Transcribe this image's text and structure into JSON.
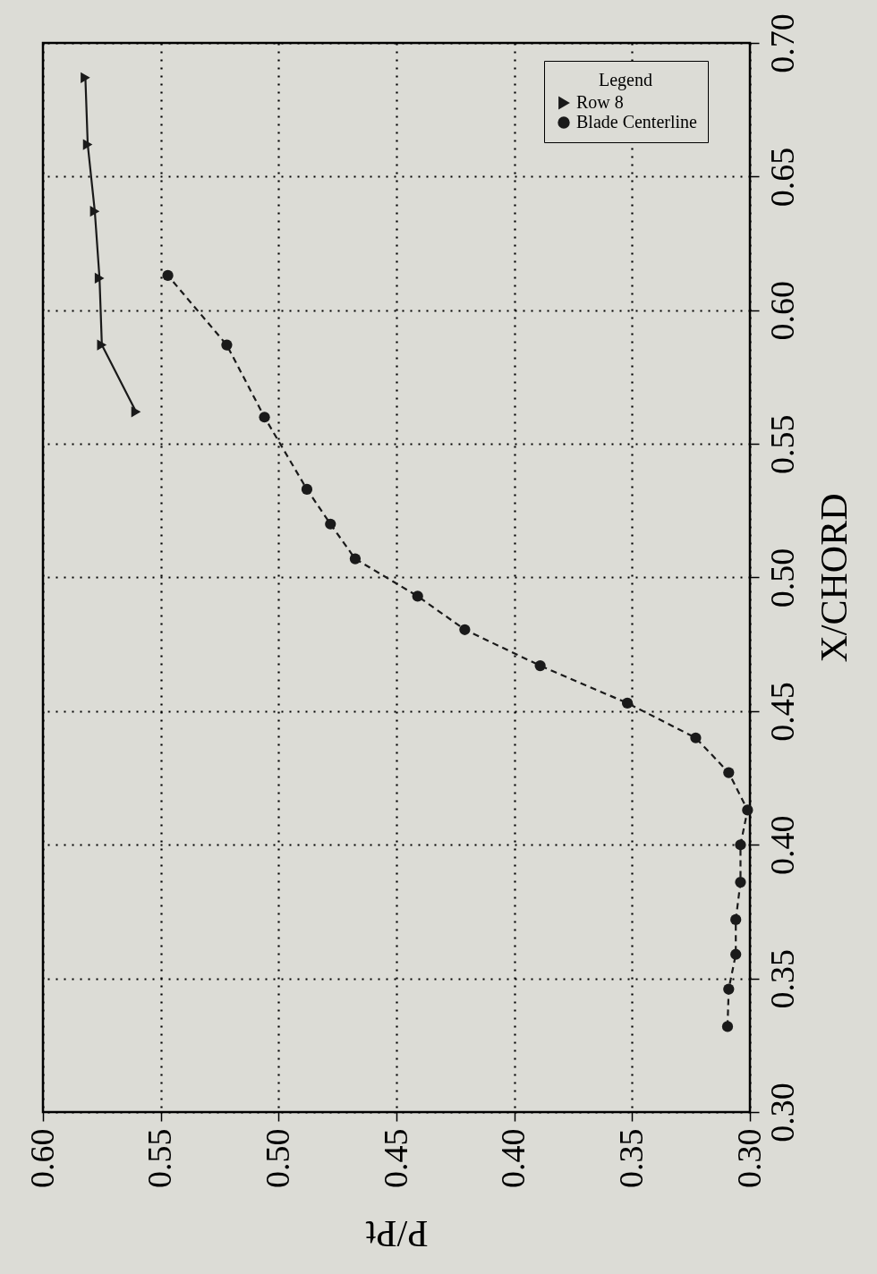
{
  "chart_data": {
    "type": "line",
    "xlabel": "P/Pt",
    "ylabel": "X/CHORD",
    "legend_title": "Legend",
    "legend": "top right",
    "grid": true,
    "xlim": [
      0.6,
      0.3
    ],
    "ylim": [
      0.3,
      0.7
    ],
    "xticks": [
      {
        "value": 0.6,
        "label": "0.60"
      },
      {
        "value": 0.55,
        "label": "0.55"
      },
      {
        "value": 0.5,
        "label": "0.50"
      },
      {
        "value": 0.45,
        "label": "0.45"
      },
      {
        "value": 0.4,
        "label": "0.40"
      },
      {
        "value": 0.35,
        "label": "0.35"
      },
      {
        "value": 0.3,
        "label": "0.30"
      }
    ],
    "yticks": [
      {
        "value": 0.3,
        "label": "0.30"
      },
      {
        "value": 0.35,
        "label": "0.35"
      },
      {
        "value": 0.4,
        "label": "0.40"
      },
      {
        "value": 0.45,
        "label": "0.45"
      },
      {
        "value": 0.5,
        "label": "0.50"
      },
      {
        "value": 0.55,
        "label": "0.55"
      },
      {
        "value": 0.6,
        "label": "0.60"
      },
      {
        "value": 0.65,
        "label": "0.65"
      },
      {
        "value": 0.7,
        "label": "0.70"
      }
    ],
    "series": [
      {
        "name": "Row 8",
        "color": "#1a1a1a",
        "marker": "triangle",
        "line_style": "solid",
        "x": [
          0.5605,
          0.575,
          0.576,
          0.578,
          0.581,
          0.582
        ],
        "values": [
          0.562,
          0.587,
          0.612,
          0.637,
          0.662,
          0.687
        ]
      },
      {
        "name": "Blade Centerline",
        "color": "#1a1a1a",
        "marker": "circle",
        "line_style": "dashed",
        "x": [
          0.3095,
          0.309,
          0.306,
          0.306,
          0.304,
          0.304,
          0.301,
          0.309,
          0.323,
          0.352,
          0.389,
          0.421,
          0.441,
          0.4675,
          0.478,
          0.488,
          0.506,
          0.522,
          0.547
        ],
        "values": [
          0.332,
          0.346,
          0.359,
          0.372,
          0.386,
          0.4,
          0.413,
          0.427,
          0.44,
          0.453,
          0.467,
          0.4805,
          0.493,
          0.507,
          0.52,
          0.533,
          0.56,
          0.587,
          0.613
        ]
      }
    ]
  }
}
